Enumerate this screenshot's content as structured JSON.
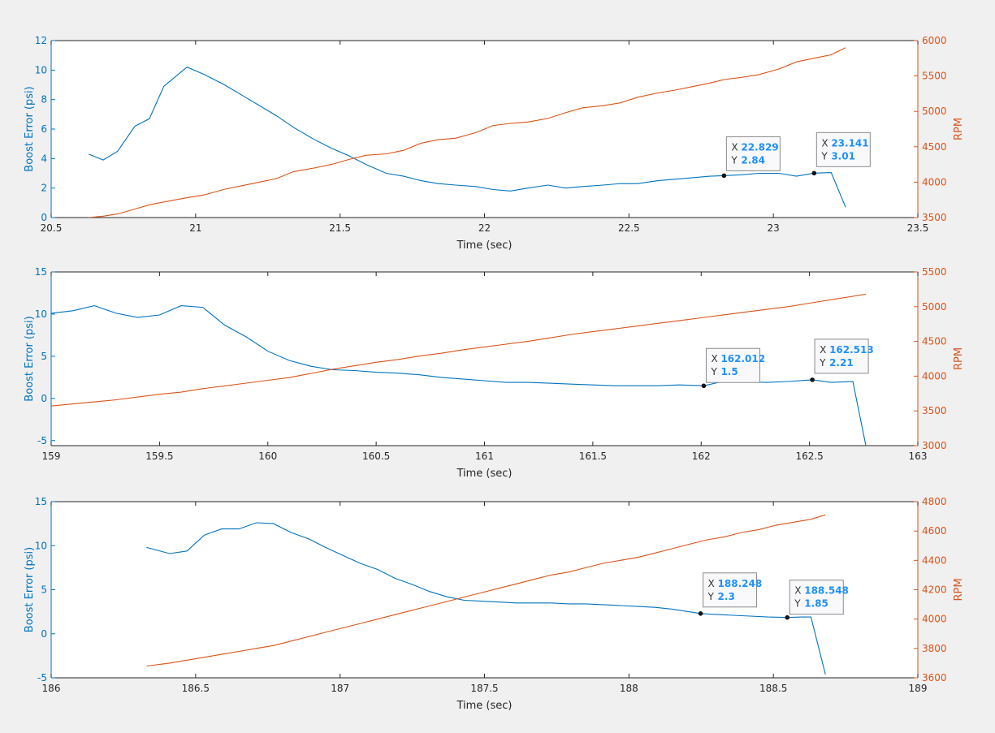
{
  "colors": {
    "boost": "#0072bd",
    "rpm": "#d95319",
    "background": "#f0f0f0",
    "axes_bg": "#ffffff",
    "tip_value": "#1e90ff"
  },
  "chart_data": [
    {
      "type": "line",
      "xlabel": "Time (sec)",
      "ylabel_left": "Boost Error (psi)",
      "ylabel_right": "RPM",
      "xlim": [
        20.5,
        23.5
      ],
      "ylim_left": [
        0,
        12
      ],
      "ylim_right": [
        3500,
        6000
      ],
      "xticks": [
        "20.5",
        "21",
        "21.5",
        "22",
        "22.5",
        "23",
        "23.5"
      ],
      "yticks_left": [
        "0",
        "2",
        "4",
        "6",
        "8",
        "10",
        "12"
      ],
      "yticks_right": [
        "3500",
        "4000",
        "4500",
        "5000",
        "5500",
        "6000"
      ],
      "grid": false,
      "series": [
        {
          "axis": "left",
          "x": [
            20.63,
            20.68,
            20.73,
            20.79,
            20.84,
            20.89,
            20.97,
            21.03,
            21.1,
            21.16,
            21.22,
            21.28,
            21.34,
            21.41,
            21.47,
            21.53,
            21.59,
            21.66,
            21.72,
            21.78,
            21.84,
            21.9,
            21.97,
            22.03,
            22.09,
            22.15,
            22.22,
            22.28,
            22.34,
            22.41,
            22.47,
            22.53,
            22.6,
            22.66,
            22.72,
            22.78,
            22.83,
            22.89,
            22.95,
            23.02,
            23.08,
            23.14,
            23.2,
            23.25
          ],
          "y": [
            4.3,
            3.9,
            4.5,
            6.2,
            6.7,
            8.9,
            10.2,
            9.7,
            9.0,
            8.3,
            7.6,
            6.9,
            6.1,
            5.3,
            4.7,
            4.2,
            3.6,
            3.0,
            2.8,
            2.5,
            2.3,
            2.2,
            2.1,
            1.9,
            1.8,
            2.0,
            2.2,
            2.0,
            2.1,
            2.2,
            2.3,
            2.3,
            2.5,
            2.6,
            2.7,
            2.8,
            2.84,
            2.9,
            3.0,
            3.0,
            2.8,
            3.01,
            3.05,
            0.7
          ]
        },
        {
          "axis": "right",
          "x": [
            20.63,
            20.68,
            20.73,
            20.79,
            20.84,
            20.89,
            20.97,
            21.03,
            21.1,
            21.16,
            21.22,
            21.28,
            21.34,
            21.41,
            21.47,
            21.53,
            21.59,
            21.66,
            21.72,
            21.78,
            21.84,
            21.9,
            21.97,
            22.03,
            22.09,
            22.15,
            22.22,
            22.28,
            22.34,
            22.41,
            22.47,
            22.53,
            22.6,
            22.66,
            22.72,
            22.78,
            22.83,
            22.89,
            22.95,
            23.02,
            23.08,
            23.14,
            23.2,
            23.25
          ],
          "y": [
            3500,
            3520,
            3550,
            3620,
            3680,
            3720,
            3780,
            3820,
            3900,
            3950,
            4000,
            4050,
            4150,
            4200,
            4250,
            4320,
            4380,
            4400,
            4450,
            4550,
            4600,
            4620,
            4700,
            4800,
            4830,
            4850,
            4900,
            4980,
            5050,
            5080,
            5120,
            5200,
            5260,
            5300,
            5350,
            5400,
            5450,
            5480,
            5520,
            5600,
            5700,
            5750,
            5800,
            5900
          ]
        }
      ],
      "datatips": [
        {
          "x": 22.829,
          "y": 2.84,
          "x_label": "22.829",
          "y_label": "2.84"
        },
        {
          "x": 23.141,
          "y": 3.01,
          "x_label": "23.141",
          "y_label": "3.01"
        }
      ]
    },
    {
      "type": "line",
      "xlabel": "Time (sec)",
      "ylabel_left": "Boost Error (psi)",
      "ylabel_right": "RPM",
      "xlim": [
        159,
        163
      ],
      "ylim_left": [
        -5.6,
        15
      ],
      "ylim_right": [
        3000,
        5500
      ],
      "xticks": [
        "159",
        "159.5",
        "160",
        "160.5",
        "161",
        "161.5",
        "162",
        "162.5",
        "163"
      ],
      "yticks_left": [
        "-5",
        "0",
        "5",
        "10",
        "15"
      ],
      "yticks_right": [
        "3000",
        "3500",
        "4000",
        "4500",
        "5000",
        "5500"
      ],
      "grid": false,
      "series": [
        {
          "axis": "left",
          "x": [
            159.0,
            159.1,
            159.2,
            159.3,
            159.4,
            159.5,
            159.6,
            159.7,
            159.8,
            159.9,
            160.0,
            160.1,
            160.2,
            160.3,
            160.4,
            160.5,
            160.6,
            160.7,
            160.8,
            160.9,
            161.0,
            161.1,
            161.2,
            161.3,
            161.4,
            161.5,
            161.6,
            161.7,
            161.8,
            161.9,
            162.012,
            162.1,
            162.2,
            162.3,
            162.4,
            162.513,
            162.6,
            162.7,
            162.76
          ],
          "y": [
            10.1,
            10.4,
            11.0,
            10.1,
            9.6,
            9.9,
            11.0,
            10.8,
            8.7,
            7.3,
            5.6,
            4.5,
            3.8,
            3.4,
            3.3,
            3.1,
            3.0,
            2.8,
            2.5,
            2.3,
            2.1,
            1.9,
            1.9,
            1.8,
            1.7,
            1.6,
            1.5,
            1.5,
            1.5,
            1.6,
            1.5,
            2.0,
            2.0,
            1.9,
            2.0,
            2.21,
            1.9,
            2.0,
            -5.6
          ]
        },
        {
          "axis": "right",
          "x": [
            159.0,
            159.1,
            159.2,
            159.3,
            159.4,
            159.5,
            159.6,
            159.7,
            159.8,
            159.9,
            160.0,
            160.1,
            160.2,
            160.3,
            160.4,
            160.5,
            160.6,
            160.7,
            160.8,
            160.9,
            161.0,
            161.1,
            161.2,
            161.3,
            161.4,
            161.5,
            161.6,
            161.7,
            161.8,
            161.9,
            162.0,
            162.1,
            162.2,
            162.3,
            162.4,
            162.5,
            162.6,
            162.7,
            162.76
          ],
          "y": [
            3570,
            3600,
            3630,
            3660,
            3700,
            3740,
            3770,
            3820,
            3860,
            3900,
            3940,
            3980,
            4040,
            4100,
            4150,
            4200,
            4240,
            4290,
            4330,
            4380,
            4420,
            4460,
            4500,
            4550,
            4600,
            4640,
            4680,
            4720,
            4760,
            4800,
            4840,
            4880,
            4920,
            4960,
            5000,
            5050,
            5100,
            5150,
            5180
          ]
        }
      ],
      "datatips": [
        {
          "x": 162.012,
          "y": 1.5,
          "x_label": "162.012",
          "y_label": "1.5"
        },
        {
          "x": 162.513,
          "y": 2.21,
          "x_label": "162.513",
          "y_label": "2.21"
        }
      ]
    },
    {
      "type": "line",
      "xlabel": "Time (sec)",
      "ylabel_left": "Boost Error (psi)",
      "ylabel_right": "RPM",
      "xlim": [
        186,
        189
      ],
      "ylim_left": [
        -5,
        15
      ],
      "ylim_right": [
        3600,
        4800
      ],
      "xticks": [
        "186",
        "186.5",
        "187",
        "187.5",
        "188",
        "188.5",
        "189"
      ],
      "yticks_left": [
        "-5",
        "0",
        "5",
        "10",
        "15"
      ],
      "yticks_right": [
        "3600",
        "3800",
        "4000",
        "4200",
        "4400",
        "4600",
        "4800"
      ],
      "grid": false,
      "series": [
        {
          "axis": "left",
          "x": [
            186.33,
            186.41,
            186.47,
            186.53,
            186.59,
            186.65,
            186.71,
            186.77,
            186.83,
            186.89,
            186.95,
            187.01,
            187.07,
            187.13,
            187.19,
            187.25,
            187.31,
            187.37,
            187.43,
            187.49,
            187.55,
            187.61,
            187.67,
            187.73,
            187.79,
            187.85,
            187.91,
            187.97,
            188.03,
            188.09,
            188.15,
            188.248,
            188.3,
            188.36,
            188.42,
            188.48,
            188.548,
            188.6,
            188.63,
            188.68
          ],
          "y": [
            9.8,
            9.1,
            9.4,
            11.2,
            11.9,
            11.9,
            12.6,
            12.5,
            11.5,
            10.8,
            9.8,
            8.9,
            8.0,
            7.3,
            6.3,
            5.6,
            4.8,
            4.2,
            3.8,
            3.7,
            3.6,
            3.5,
            3.5,
            3.5,
            3.4,
            3.4,
            3.3,
            3.2,
            3.1,
            3.0,
            2.8,
            2.3,
            2.2,
            2.1,
            2.0,
            1.9,
            1.85,
            1.9,
            1.9,
            -4.6
          ]
        },
        {
          "axis": "right",
          "x": [
            186.33,
            186.41,
            186.47,
            186.53,
            186.59,
            186.65,
            186.71,
            186.77,
            186.83,
            186.89,
            186.95,
            187.01,
            187.07,
            187.13,
            187.19,
            187.25,
            187.31,
            187.37,
            187.43,
            187.49,
            187.55,
            187.61,
            187.67,
            187.73,
            187.79,
            187.85,
            187.91,
            187.97,
            188.03,
            188.09,
            188.15,
            188.21,
            188.27,
            188.33,
            188.39,
            188.45,
            188.51,
            188.57,
            188.63,
            188.68
          ],
          "y": [
            3680,
            3700,
            3720,
            3740,
            3760,
            3780,
            3800,
            3820,
            3850,
            3880,
            3910,
            3940,
            3970,
            4000,
            4030,
            4060,
            4090,
            4120,
            4150,
            4180,
            4210,
            4240,
            4270,
            4300,
            4320,
            4350,
            4380,
            4400,
            4420,
            4450,
            4480,
            4510,
            4540,
            4560,
            4590,
            4610,
            4640,
            4660,
            4680,
            4710
          ]
        }
      ],
      "datatips": [
        {
          "x": 188.248,
          "y": 2.3,
          "x_label": "188.248",
          "y_label": "2.3"
        },
        {
          "x": 188.548,
          "y": 1.85,
          "x_label": "188.548",
          "y_label": "1.85"
        }
      ]
    }
  ]
}
